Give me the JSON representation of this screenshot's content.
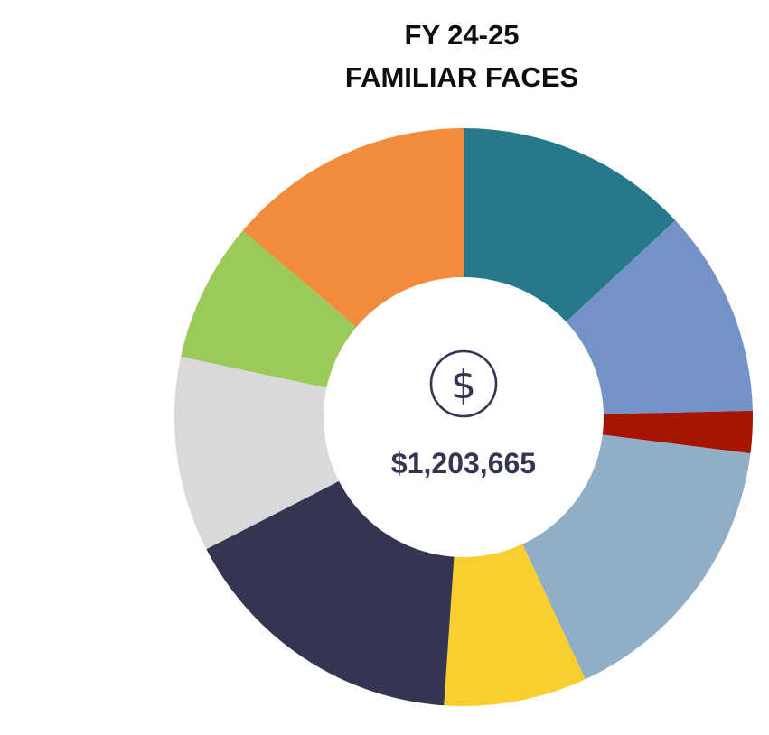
{
  "chart_data": {
    "type": "pie",
    "title": "FY 24-25",
    "subtitle": "FAMILIAR FACES",
    "center_label": "$1,203,665",
    "center_icon": "dollar-circle-icon",
    "style": "donut",
    "slices": [
      {
        "value": 13.9,
        "color": "#26798a"
      },
      {
        "value": 12.3,
        "color": "#7492c8"
      },
      {
        "value": 2.5,
        "color": "#a81404"
      },
      {
        "value": 17.1,
        "color": "#91aec7"
      },
      {
        "value": 8.5,
        "color": "#f8cf2e"
      },
      {
        "value": 17.4,
        "color": "#343551"
      },
      {
        "value": 11.6,
        "color": "#d9d9d9"
      },
      {
        "value": 8.3,
        "color": "#9bca5a"
      },
      {
        "value": 14.7,
        "color": "#f28b3b"
      }
    ]
  },
  "colors": {
    "center_fill": "#ffffff",
    "center_text": "#343551",
    "title_text": "#0d0d0d"
  }
}
